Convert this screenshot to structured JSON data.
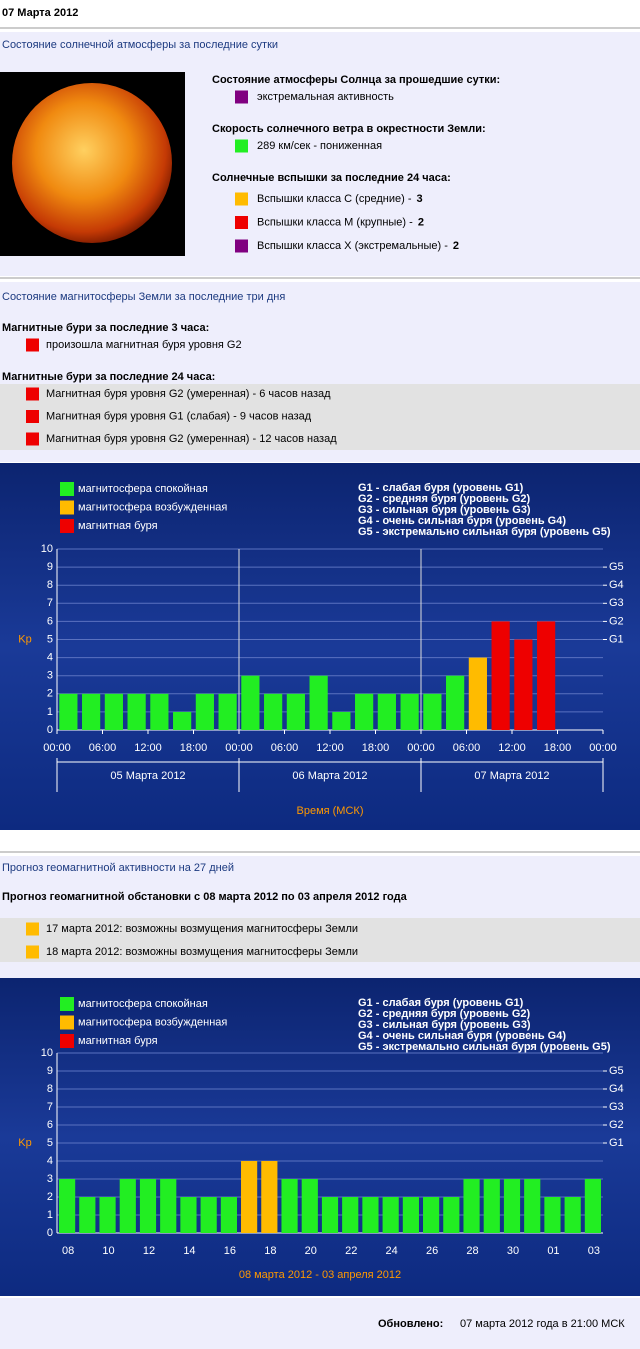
{
  "header": {
    "date": "07 Марта 2012"
  },
  "solar": {
    "title": "Состояние солнечной атмосферы за последние сутки",
    "groups": [
      {
        "heading": "Состояние атмосферы Солнца за прошедшие сутки:",
        "entries": [
          {
            "color": "#800080",
            "text": "экстремальная активность"
          }
        ]
      },
      {
        "heading": "Скорость солнечного ветра в окрестности Земли:",
        "entries": [
          {
            "color": "#22ee22",
            "text": "289 км/сек - пониженная"
          }
        ]
      },
      {
        "heading": "Солнечные вспышки за последние 24 часа:",
        "entries": [
          {
            "color": "#ffbb00",
            "text": "Вспышки класса С (средние) -",
            "count": 3
          },
          {
            "color": "#ee0000",
            "text": "Вспышки класса М (крупные) -",
            "count": 2
          },
          {
            "color": "#800080",
            "text": "Вспышки класса Х (экстремальные) -",
            "count": 2
          }
        ]
      }
    ]
  },
  "magnetosphere": {
    "title": "Состояние магнитосферы Земли за последние три дня",
    "groups": [
      {
        "heading": "Магнитные бури за последние 3 часа:",
        "entries": [
          {
            "color": "#ee0000",
            "text": "произошла магнитная буря уровня G2"
          }
        ]
      },
      {
        "heading": "Магнитные бури за последние 24 часа:",
        "entries": [
          {
            "color": "#ee0000",
            "text": "Магнитная буря уровня G2 (умеренная) - 6 часов назад"
          },
          {
            "color": "#ee0000",
            "text": "Магнитная буря уровня G1 (слабая) - 9 часов назад"
          },
          {
            "color": "#ee0000",
            "text": "Магнитная буря уровня G2 (умеренная) - 12 часов назад"
          }
        ]
      }
    ]
  },
  "forecast": {
    "title": "Прогноз геомагнитной активности на 27 дней",
    "subtitle": "Прогноз геомагнитной обстановки с 08 марта 2012 по 03 апреля 2012 года",
    "entries": [
      {
        "color": "#ffbb00",
        "text": "17 марта 2012: возможны возмущения магнитосферы Земли"
      },
      {
        "color": "#ffbb00",
        "text": "18 марта 2012: возможны возмущения магнитосферы Земли"
      }
    ]
  },
  "chart_data": [
    {
      "type": "bar",
      "ylabel": "Kp",
      "xlabel": "Время (МСК)",
      "legend_notes": [
        "G1 - слабая буря (уровень G1)",
        "G2 - средняя буря (уровень G2)",
        "G3 - сильная буря (уровень G3)",
        "G4 - очень сильная буря (уровень G4)",
        "G5 - экстремально сильная буря (уровень G5)"
      ],
      "ylim": [
        0,
        10
      ],
      "yticks": [
        0,
        1,
        2,
        3,
        4,
        5,
        6,
        7,
        8,
        9,
        10
      ],
      "y2lim": [
        0,
        10
      ],
      "y2ticks": [
        {
          "value": 5,
          "label": "G1"
        },
        {
          "value": 6,
          "label": "G2"
        },
        {
          "value": 7,
          "label": "G3"
        },
        {
          "value": 8,
          "label": "G4"
        },
        {
          "value": 9,
          "label": "G5"
        }
      ],
      "xlim": [
        0,
        24
      ],
      "xticks": [
        {
          "value": 0,
          "label": "00:00"
        },
        {
          "value": 2,
          "label": "06:00"
        },
        {
          "value": 4,
          "label": "12:00"
        },
        {
          "value": 6,
          "label": "18:00"
        },
        {
          "value": 8,
          "label": "00:00"
        },
        {
          "value": 10,
          "label": "06:00"
        },
        {
          "value": 12,
          "label": "12:00"
        },
        {
          "value": 14,
          "label": "18:00"
        },
        {
          "value": 16,
          "label": "00:00"
        },
        {
          "value": 18,
          "label": "06:00"
        },
        {
          "value": 20,
          "label": "12:00"
        },
        {
          "value": 22,
          "label": "18:00"
        },
        {
          "value": 24,
          "label": "00:00"
        }
      ],
      "day_labels": [
        "05 Марта 2012",
        "06 Марта 2012",
        "07 Марта 2012"
      ],
      "grid": true,
      "series": [
        {
          "name": "магнитосфера спокойная",
          "color": "#22ee22",
          "values": [
            2,
            2,
            2,
            2,
            2,
            1,
            2,
            2,
            3,
            2,
            2,
            3,
            1,
            2,
            2,
            2,
            2,
            3,
            null,
            null,
            null,
            null,
            null,
            null
          ]
        },
        {
          "name": "магнитосфера возбужденная",
          "color": "#ffbb00",
          "values": [
            null,
            null,
            null,
            null,
            null,
            null,
            null,
            null,
            null,
            null,
            null,
            null,
            null,
            null,
            null,
            null,
            null,
            null,
            4,
            null,
            null,
            null,
            null,
            null
          ]
        },
        {
          "name": "магнитная буря",
          "color": "#ee0000",
          "values": [
            null,
            null,
            null,
            null,
            null,
            null,
            null,
            null,
            null,
            null,
            null,
            null,
            null,
            null,
            null,
            null,
            null,
            null,
            null,
            6,
            5,
            6,
            null,
            null
          ]
        }
      ]
    },
    {
      "type": "bar",
      "ylabel": "Kp",
      "xlabel": "08 марта 2012 - 03 апреля 2012",
      "legend_notes": [
        "G1 - слабая буря (уровень G1)",
        "G2 - средняя буря (уровень G2)",
        "G3 - сильная буря (уровень G3)",
        "G4 - очень сильная буря (уровень G4)",
        "G5 - экстремально сильная буря (уровень G5)"
      ],
      "ylim": [
        0,
        10
      ],
      "yticks": [
        0,
        1,
        2,
        3,
        4,
        5,
        6,
        7,
        8,
        9,
        10
      ],
      "y2lim": [
        0,
        10
      ],
      "y2ticks": [
        {
          "value": 5,
          "label": "G1"
        },
        {
          "value": 6,
          "label": "G2"
        },
        {
          "value": 7,
          "label": "G3"
        },
        {
          "value": 8,
          "label": "G4"
        },
        {
          "value": 9,
          "label": "G5"
        }
      ],
      "categories": [
        "08",
        null,
        "10",
        null,
        "12",
        null,
        "14",
        null,
        "16",
        null,
        "18",
        null,
        "20",
        null,
        "22",
        null,
        "24",
        null,
        "26",
        null,
        "28",
        null,
        "30",
        null,
        "01",
        null,
        "03"
      ],
      "grid": true,
      "series": [
        {
          "name": "магнитосфера спокойная",
          "color": "#22ee22",
          "values": [
            3,
            2,
            2,
            3,
            3,
            3,
            2,
            2,
            2,
            null,
            null,
            3,
            3,
            2,
            2,
            2,
            2,
            2,
            2,
            2,
            3,
            3,
            3,
            3,
            2,
            2,
            3
          ]
        },
        {
          "name": "магнитосфера возбужденная",
          "color": "#ffbb00",
          "values": [
            null,
            null,
            null,
            null,
            null,
            null,
            null,
            null,
            null,
            4,
            4,
            null,
            null,
            null,
            null,
            null,
            null,
            null,
            null,
            null,
            null,
            null,
            null,
            null,
            null,
            null,
            null
          ]
        },
        {
          "name": "магнитная буря",
          "color": "#ee0000",
          "values": [
            null,
            null,
            null,
            null,
            null,
            null,
            null,
            null,
            null,
            null,
            null,
            null,
            null,
            null,
            null,
            null,
            null,
            null,
            null,
            null,
            null,
            null,
            null,
            null,
            null,
            null,
            null
          ]
        }
      ]
    }
  ],
  "footer": {
    "label": "Обновлено:",
    "text": "07 марта 2012 года в 21:00 МСК"
  }
}
